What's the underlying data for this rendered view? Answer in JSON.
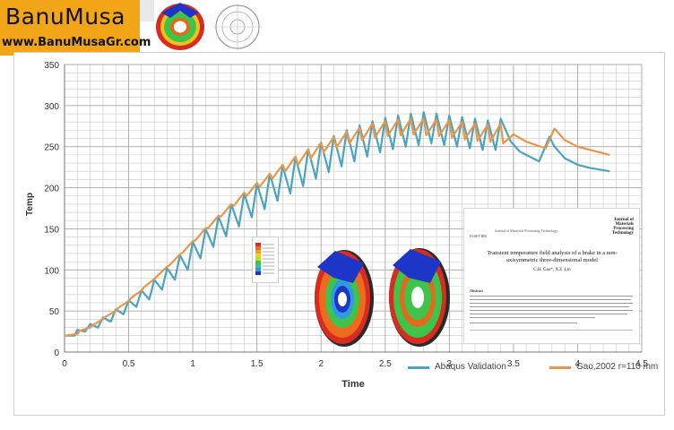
{
  "brand": {
    "title": "BanuMusa",
    "url": "www.BanuMusaGr.com"
  },
  "colors": {
    "abaqus": "#4aa3c2",
    "gao": "#e8964a",
    "grid": "#c8c8c8",
    "brand_bg": "#f2a516"
  },
  "chart_data": {
    "type": "line",
    "xlabel": "Time",
    "ylabel": "Temp",
    "xlim": [
      0,
      4.5
    ],
    "ylim": [
      0,
      350
    ],
    "xticks": [
      0,
      0.5,
      1,
      1.5,
      2,
      2.5,
      3,
      3.5,
      4,
      4.5
    ],
    "yticks": [
      0,
      50,
      100,
      150,
      200,
      250,
      300,
      350
    ],
    "grid": true,
    "legend_position": "bottom-right",
    "series": [
      {
        "name": "Abaqus Validation",
        "color": "#4aa3c2",
        "x": [
          0,
          0.08,
          0.1,
          0.16,
          0.2,
          0.26,
          0.3,
          0.36,
          0.4,
          0.46,
          0.5,
          0.56,
          0.6,
          0.66,
          0.7,
          0.76,
          0.8,
          0.86,
          0.9,
          0.96,
          1.0,
          1.06,
          1.1,
          1.16,
          1.2,
          1.26,
          1.3,
          1.36,
          1.4,
          1.46,
          1.5,
          1.56,
          1.6,
          1.66,
          1.7,
          1.76,
          1.8,
          1.86,
          1.9,
          1.96,
          2.0,
          2.06,
          2.1,
          2.16,
          2.2,
          2.26,
          2.3,
          2.36,
          2.4,
          2.46,
          2.5,
          2.56,
          2.6,
          2.66,
          2.7,
          2.76,
          2.8,
          2.86,
          2.9,
          2.96,
          3.0,
          3.06,
          3.1,
          3.16,
          3.2,
          3.26,
          3.3,
          3.36,
          3.4,
          3.48,
          3.55,
          3.6,
          3.7,
          3.78,
          3.82,
          3.9,
          4.0,
          4.1,
          4.25
        ],
        "y": [
          20,
          20,
          27,
          25,
          34,
          30,
          42,
          37,
          52,
          46,
          63,
          55,
          75,
          64,
          88,
          76,
          102,
          88,
          118,
          100,
          134,
          114,
          150,
          128,
          165,
          141,
          180,
          153,
          193,
          164,
          205,
          174,
          217,
          184,
          227,
          193,
          237,
          202,
          247,
          211,
          255,
          219,
          263,
          226,
          270,
          232,
          276,
          238,
          281,
          243,
          285,
          247,
          288,
          250,
          290,
          252,
          292,
          254,
          290,
          252,
          288,
          250,
          286,
          248,
          284,
          246,
          282,
          246,
          284,
          256,
          244,
          240,
          232,
          262,
          250,
          236,
          228,
          224,
          220
        ]
      },
      {
        "name": "Gao,2002 r=110 mm",
        "color": "#e8964a",
        "x": [
          0,
          0.1,
          0.12,
          0.2,
          0.22,
          0.3,
          0.32,
          0.4,
          0.42,
          0.5,
          0.52,
          0.6,
          0.62,
          0.7,
          0.72,
          0.8,
          0.82,
          0.9,
          0.92,
          1.0,
          1.02,
          1.1,
          1.12,
          1.2,
          1.22,
          1.3,
          1.32,
          1.4,
          1.42,
          1.5,
          1.52,
          1.6,
          1.62,
          1.7,
          1.72,
          1.8,
          1.82,
          1.9,
          1.92,
          2.0,
          2.02,
          2.1,
          2.12,
          2.2,
          2.22,
          2.3,
          2.32,
          2.4,
          2.42,
          2.5,
          2.52,
          2.6,
          2.62,
          2.7,
          2.72,
          2.8,
          2.82,
          2.9,
          2.92,
          3.0,
          3.02,
          3.1,
          3.12,
          3.2,
          3.22,
          3.3,
          3.32,
          3.4,
          3.42,
          3.5,
          3.6,
          3.75,
          3.82,
          3.9,
          4.0,
          4.1,
          4.25
        ],
        "y": [
          20,
          22,
          26,
          30,
          33,
          40,
          43,
          50,
          54,
          62,
          66,
          75,
          79,
          89,
          92,
          104,
          106,
          119,
          121,
          135,
          136,
          151,
          151,
          166,
          165,
          180,
          178,
          194,
          190,
          206,
          201,
          217,
          211,
          228,
          220,
          238,
          228,
          247,
          236,
          255,
          243,
          262,
          249,
          268,
          254,
          273,
          258,
          278,
          261,
          281,
          263,
          283,
          264,
          284,
          265,
          284,
          264,
          283,
          263,
          282,
          261,
          280,
          259,
          278,
          257,
          277,
          256,
          278,
          254,
          265,
          256,
          248,
          272,
          258,
          250,
          246,
          240
        ]
      }
    ]
  },
  "paper": {
    "journal": "Journal of Materials Processing Technology",
    "publisher": "ELSEVIER",
    "journal_logo": "Journal of Materials Processing Technology",
    "title": "Transient temperature field analysis of a brake in a non-axisymmetric three-dimensional model",
    "authors": "C.H. Gao*, X.Z. Lin",
    "abstract_label": "Abstract"
  }
}
